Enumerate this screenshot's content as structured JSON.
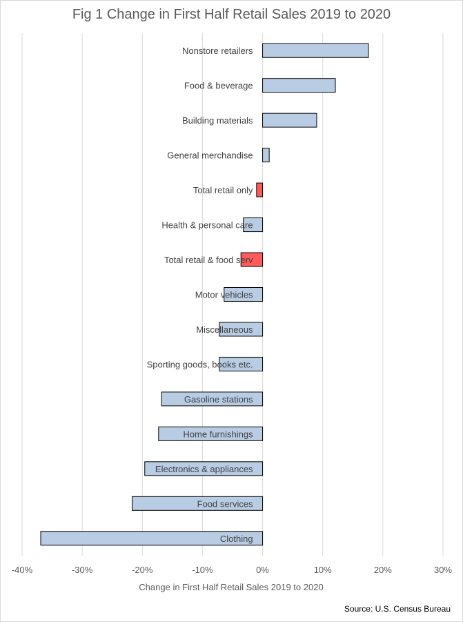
{
  "chart_data": {
    "type": "bar",
    "orientation": "horizontal",
    "title": "Fig 1 Change in First Half Retail Sales 2019 to 2020",
    "xlabel": "Change in First Half Retail Sales 2019 to 2020",
    "ylabel": "",
    "xlim": [
      -40,
      30
    ],
    "xticks": [
      "-40%",
      "-30%",
      "-20%",
      "-10%",
      "0%",
      "10%",
      "20%",
      "30%"
    ],
    "xtick_values": [
      -40,
      -30,
      -20,
      -10,
      0,
      10,
      20,
      30
    ],
    "grid": true,
    "categories": [
      "Nonstore retailers",
      "Food & beverage",
      "Building materials",
      "General merchandise",
      "Total retail only",
      "Health & personal care",
      "Total retail & food serv",
      "Motor vehicles",
      "Miscellaneous",
      "Sporting goods, books etc.",
      "Gasoline stations",
      "Home furnishings",
      "Electronics & appliances",
      "Food services",
      "Clothing"
    ],
    "values": [
      17.6,
      12.1,
      9.0,
      1.1,
      -1.0,
      -3.2,
      -3.6,
      -6.4,
      -7.2,
      -7.2,
      -16.8,
      -17.3,
      -19.6,
      -21.7,
      -36.9
    ],
    "highlighted": [
      "Total retail only",
      "Total retail & food serv"
    ],
    "colors": {
      "bar": "#b8cce4",
      "highlight": "#ff5b5b",
      "bar_outline": "#000000",
      "grid": "#d9d9d9"
    }
  },
  "source": "Source: U.S. Census Bureau"
}
